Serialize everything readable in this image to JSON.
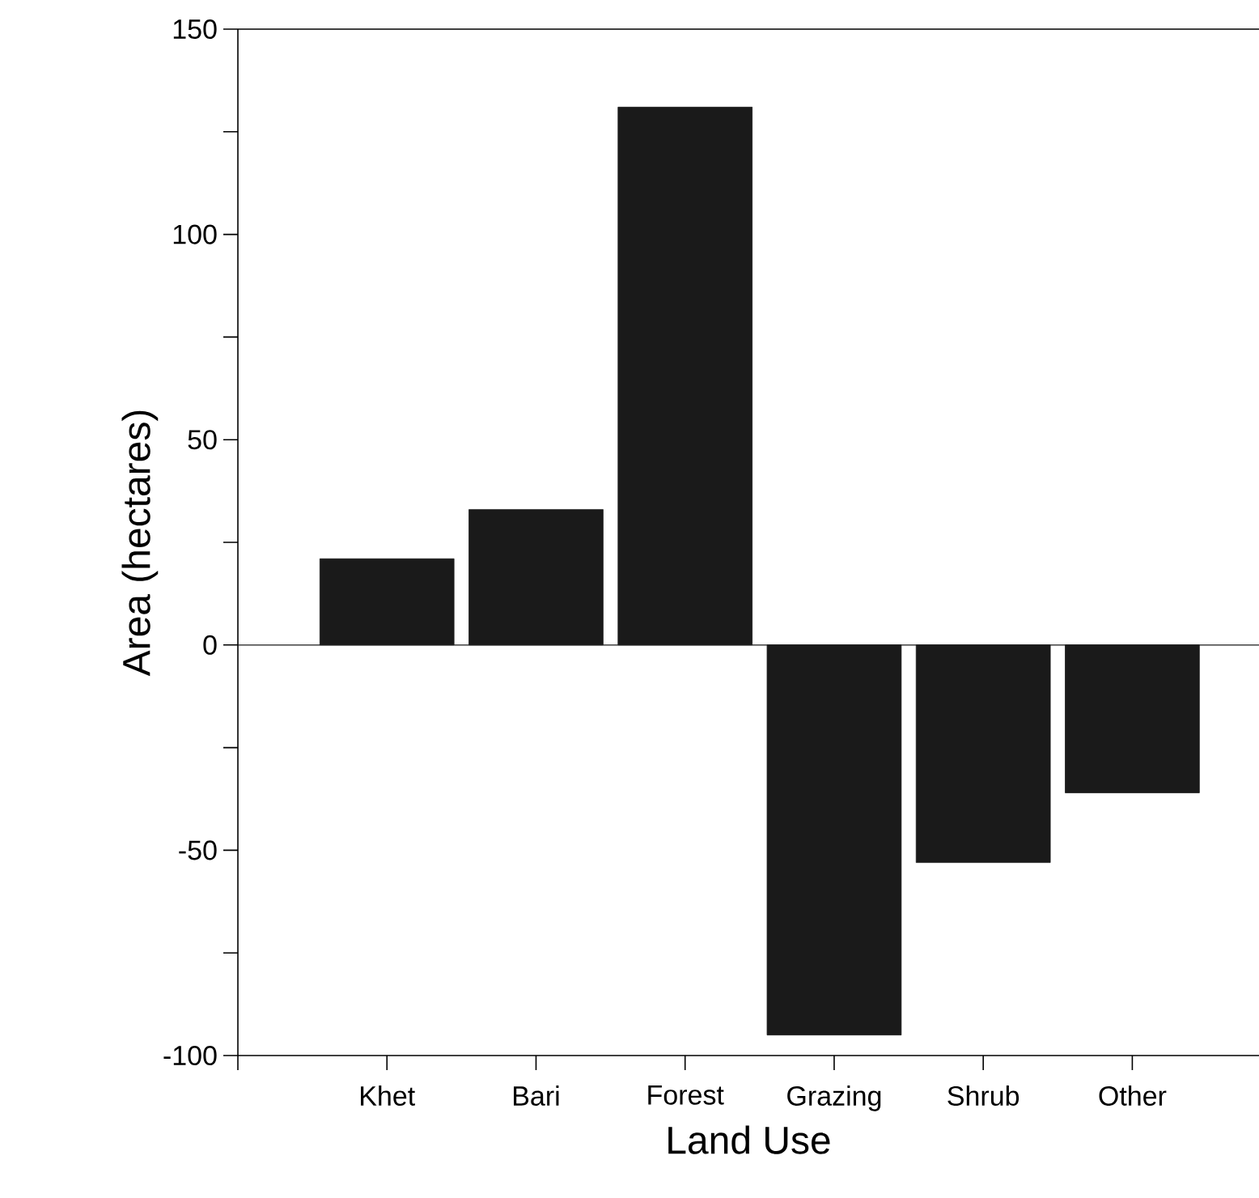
{
  "chart_data": {
    "type": "bar",
    "xlabel": "Land Use",
    "ylabel": "Area (hectares)",
    "categories": [
      "Khet",
      "Bari",
      "Forest",
      "Grazing",
      "Shrub",
      "Other"
    ],
    "values": [
      21,
      33,
      131,
      -95,
      -53,
      -36
    ],
    "color": "#1a1a1a",
    "ylim": [
      -100,
      150
    ],
    "yticks": [
      -100,
      {
        "value": -75,
        "label": null
      },
      -50,
      {
        "value": -25,
        "label": null
      },
      0,
      {
        "value": 25,
        "label": null
      },
      50,
      {
        "value": 75,
        "label": null
      },
      100,
      {
        "value": 125,
        "label": null
      },
      150
    ],
    "ref_lines": [
      {
        "axis": "y",
        "value": 0,
        "color": "#1a1a1a"
      }
    ],
    "grid": false
  }
}
